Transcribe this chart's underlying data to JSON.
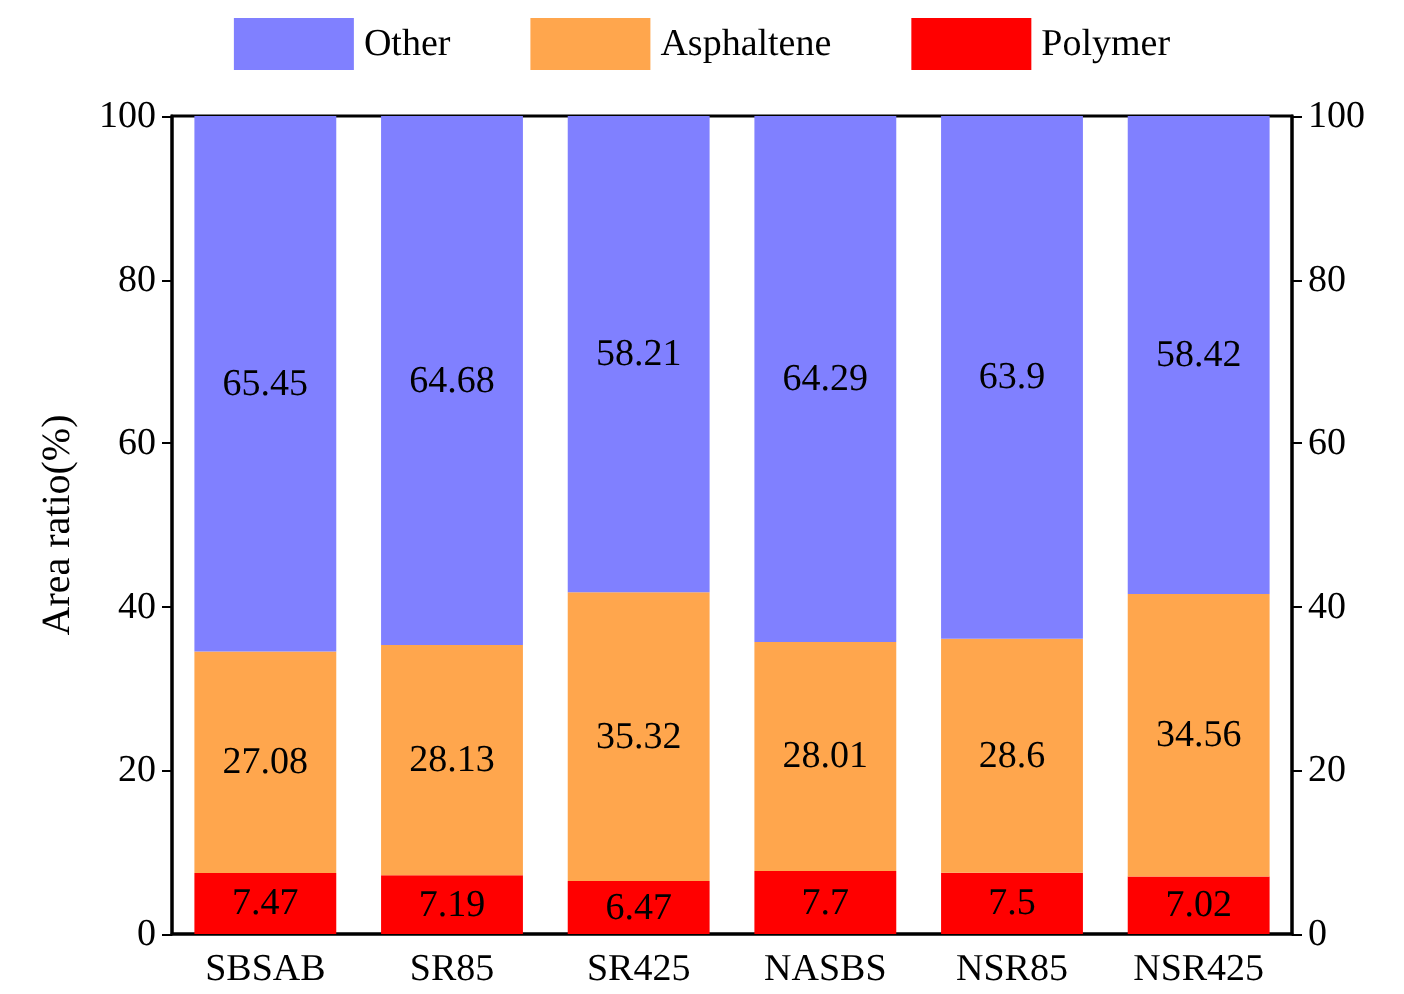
{
  "chart_data": {
    "type": "bar",
    "stacked": true,
    "ylabel": "Area ratio(%)",
    "categories": [
      "SBSAB",
      "SR85",
      "SR425",
      "NASBS",
      "NSR85",
      "NSR425"
    ],
    "series": [
      {
        "name": "Polymer",
        "color": "#ff0000",
        "values": [
          7.47,
          7.19,
          6.47,
          7.7,
          7.5,
          7.02
        ]
      },
      {
        "name": "Asphaltene",
        "color": "#ffa64d",
        "values": [
          27.08,
          28.13,
          35.32,
          28.01,
          28.6,
          34.56
        ]
      },
      {
        "name": "Other",
        "color": "#8080ff",
        "values": [
          65.45,
          64.68,
          58.21,
          64.29,
          63.9,
          58.42
        ]
      }
    ],
    "ylim": [
      0,
      100
    ],
    "yticks": [
      0,
      20,
      40,
      60,
      80,
      100
    ],
    "y2lim": [
      0,
      100
    ],
    "y2ticks": [
      0,
      20,
      40,
      60,
      80,
      100
    ],
    "data_labels": true,
    "grid": false,
    "legend": "top"
  }
}
